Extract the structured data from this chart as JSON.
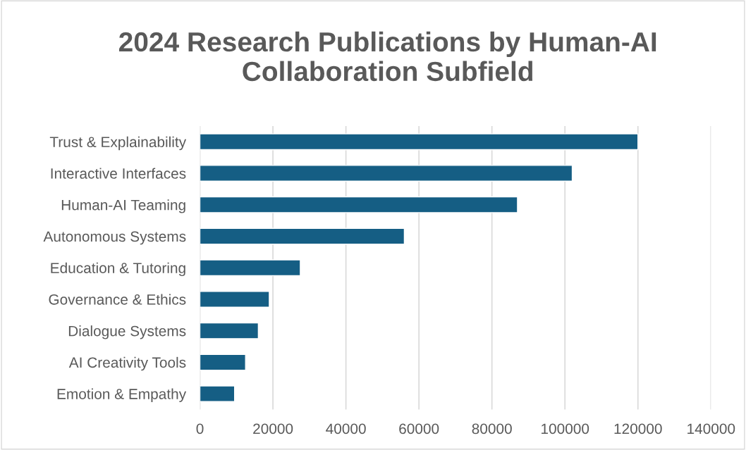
{
  "chart_data": {
    "type": "bar",
    "orientation": "horizontal",
    "title": "2024 Research Publications by Human-AI Collaboration Subfield",
    "categories": [
      "Trust & Explainability",
      "Interactive Interfaces",
      "Human-AI Teaming",
      "Autonomous Systems",
      "Education & Tutoring",
      "Governance & Ethics",
      "Dialogue Systems",
      "AI Creativity Tools",
      "Emotion & Empathy"
    ],
    "values": [
      120000,
      102000,
      87000,
      56000,
      27500,
      19000,
      16000,
      12500,
      9500
    ],
    "color": "#155e84",
    "xlim": [
      0,
      140000
    ],
    "xticks": [
      0,
      20000,
      40000,
      60000,
      80000,
      100000,
      120000,
      140000
    ],
    "grid": "x"
  }
}
